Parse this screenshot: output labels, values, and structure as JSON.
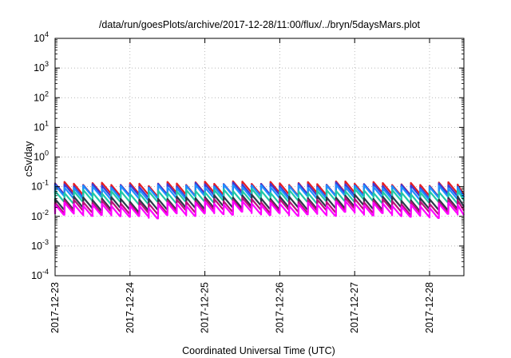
{
  "chart_data": {
    "type": "line",
    "title": "/data/run/goesPlots/archive/2017-12-28/11:00/flux/../bryn/5daysMars.plot",
    "xlabel": "Coordinated Universal Time (UTC)",
    "ylabel": "cSv/day",
    "yscale": "log",
    "ylim": [
      0.0001,
      10000
    ],
    "y_ticks": [
      {
        "value": 0.0001,
        "base": "10",
        "exp": "-4"
      },
      {
        "value": 0.001,
        "base": "10",
        "exp": "-3"
      },
      {
        "value": 0.01,
        "base": "10",
        "exp": "-2"
      },
      {
        "value": 0.1,
        "base": "10",
        "exp": "-1"
      },
      {
        "value": 1,
        "base": "10",
        "exp": "0"
      },
      {
        "value": 10,
        "base": "10",
        "exp": "1"
      },
      {
        "value": 100,
        "base": "10",
        "exp": "2"
      },
      {
        "value": 1000,
        "base": "10",
        "exp": "3"
      },
      {
        "value": 10000,
        "base": "10",
        "exp": "4"
      }
    ],
    "xlim": [
      "2017-12-23T00:00",
      "2017-12-28T11:00"
    ],
    "x_ticks": [
      "2017-12-23",
      "2017-12-24",
      "2017-12-25",
      "2017-12-26",
      "2017-12-27",
      "2017-12-28"
    ],
    "grid": true,
    "sawtooth_period_hours": 3,
    "series": [
      {
        "color": "#e51c23",
        "base": [
          0.13,
          0.125,
          0.12,
          0.13,
          0.135,
          0.14,
          0.13,
          0.13,
          0.14,
          0.13,
          0.12,
          0.13
        ],
        "dip_ratio": 0.45
      },
      {
        "color": "#3a3ad8",
        "base": [
          0.115,
          0.11,
          0.105,
          0.115,
          0.12,
          0.125,
          0.115,
          0.115,
          0.125,
          0.115,
          0.105,
          0.115
        ],
        "dip_ratio": 0.45
      },
      {
        "color": "#1e90ff",
        "base": [
          0.1,
          0.095,
          0.09,
          0.1,
          0.105,
          0.11,
          0.1,
          0.1,
          0.11,
          0.1,
          0.09,
          0.1
        ],
        "dip_ratio": 0.45
      },
      {
        "color": "#20c9a6",
        "base": [
          0.07,
          0.066,
          0.063,
          0.07,
          0.074,
          0.078,
          0.07,
          0.07,
          0.078,
          0.07,
          0.063,
          0.07
        ],
        "dip_ratio": 0.45
      },
      {
        "color": "#2b3a4a",
        "base": [
          0.042,
          0.04,
          0.035,
          0.042,
          0.046,
          0.049,
          0.043,
          0.043,
          0.049,
          0.043,
          0.037,
          0.042
        ],
        "dip_ratio": 0.45
      },
      {
        "color": "#b8107a",
        "base": [
          0.033,
          0.031,
          0.027,
          0.033,
          0.036,
          0.038,
          0.034,
          0.034,
          0.038,
          0.034,
          0.029,
          0.033
        ],
        "dip_ratio": 0.45
      },
      {
        "color": "#ff00ff",
        "base": [
          0.026,
          0.024,
          0.021,
          0.026,
          0.028,
          0.03,
          0.026,
          0.026,
          0.03,
          0.026,
          0.022,
          0.026
        ],
        "dip_ratio": 0.45
      }
    ]
  }
}
